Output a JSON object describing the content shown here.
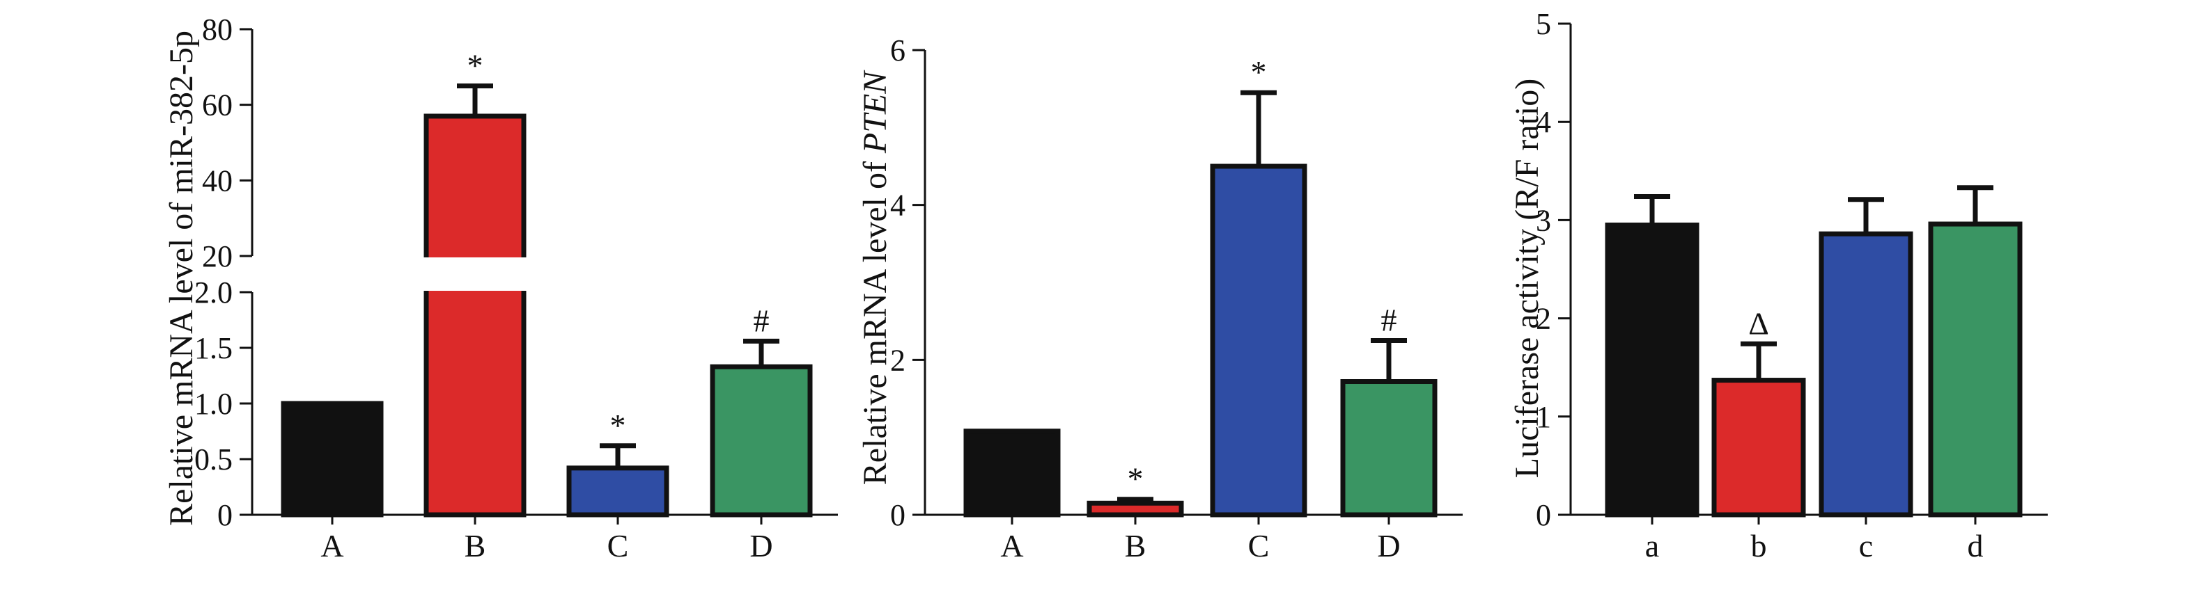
{
  "chart_data": [
    {
      "type": "bar",
      "ylabel": "Relative mRNA level of miR-382-5p",
      "broken_axis": true,
      "ylim_lower": [
        0,
        2.0
      ],
      "ylim_upper": [
        20,
        80
      ],
      "yticks_lower": [
        "0",
        "0.5",
        "1.0",
        "1.5",
        "2.0"
      ],
      "yticks_upper": [
        "20",
        "40",
        "60",
        "80"
      ],
      "categories": [
        "A",
        "B",
        "C",
        "D"
      ],
      "values": [
        1.0,
        57,
        0.42,
        1.33
      ],
      "errors": [
        0,
        8,
        0.2,
        0.23
      ],
      "significance": [
        "",
        "*",
        "*",
        "#"
      ],
      "colors": [
        "#111111",
        "#dc2a2a",
        "#2f4da4",
        "#3a9563"
      ]
    },
    {
      "type": "bar",
      "ylabel_prefix": "Relative mRNA level of",
      "ylabel_italic": "PTEN",
      "ylim": [
        0,
        6
      ],
      "yticks": [
        "0",
        "2",
        "4",
        "6"
      ],
      "categories": [
        "A",
        "B",
        "C",
        "D"
      ],
      "values": [
        1.08,
        0.15,
        4.5,
        1.72
      ],
      "errors": [
        0,
        0.05,
        0.95,
        0.53
      ],
      "significance": [
        "",
        "*",
        "*",
        "#"
      ],
      "colors": [
        "#111111",
        "#dc2a2a",
        "#2f4da4",
        "#3a9563"
      ]
    },
    {
      "type": "bar",
      "ylabel": "Luciferase activity (R/F ratio)",
      "ylim": [
        0,
        5
      ],
      "yticks": [
        "0",
        "1",
        "2",
        "3",
        "4",
        "5"
      ],
      "categories": [
        "a",
        "b",
        "c",
        "d"
      ],
      "values": [
        2.95,
        1.37,
        2.86,
        2.96
      ],
      "errors": [
        0.29,
        0.37,
        0.35,
        0.37
      ],
      "significance": [
        "",
        "Δ",
        "",
        ""
      ],
      "colors": [
        "#111111",
        "#dc2a2a",
        "#2f4da4",
        "#3a9563"
      ]
    }
  ]
}
